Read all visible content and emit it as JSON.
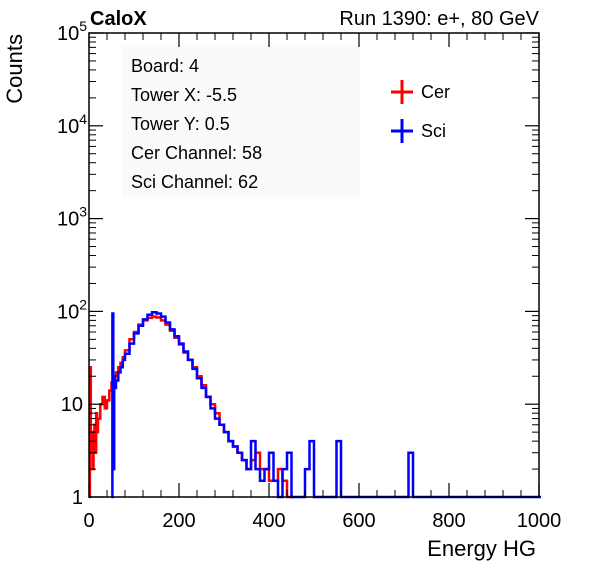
{
  "header": {
    "left_title": "CaloX",
    "right_title": "Run 1390: e+, 80 GeV"
  },
  "info_box": {
    "lines": [
      "Board: 4",
      "Tower X: -5.5",
      "Tower Y: 0.5",
      "Cer Channel: 58",
      "Sci Channel: 62"
    ]
  },
  "chart_data": {
    "type": "line",
    "xlabel": "Energy HG",
    "ylabel": "Counts",
    "xlim": [
      0,
      1000
    ],
    "ylim": [
      1,
      100000
    ],
    "y_scale": "log",
    "x_ticks": [
      0,
      200,
      400,
      600,
      800,
      1000
    ],
    "y_ticks": [
      {
        "value": 1,
        "label": "1"
      },
      {
        "value": 10,
        "label": "10"
      },
      {
        "value": 100,
        "label": "10",
        "sup": "2"
      },
      {
        "value": 1000,
        "label": "10",
        "sup": "3"
      },
      {
        "value": 10000,
        "label": "10",
        "sup": "4"
      },
      {
        "value": 100000,
        "label": "10",
        "sup": "5"
      }
    ],
    "grid": false,
    "legend_position": "top-right",
    "series": [
      {
        "name": "Cer",
        "color": "#ff0000",
        "x": [
          0,
          2,
          4,
          6,
          8,
          10,
          12,
          14,
          16,
          18,
          20,
          25,
          30,
          35,
          40,
          45,
          50,
          55,
          60,
          65,
          70,
          75,
          80,
          90,
          100,
          110,
          120,
          130,
          140,
          150,
          160,
          170,
          180,
          190,
          200,
          210,
          220,
          230,
          240,
          250,
          260,
          270,
          280,
          290,
          300,
          310,
          320,
          330,
          340,
          350,
          360,
          370,
          380,
          390,
          400,
          410,
          420,
          430,
          440,
          450
        ],
        "y": [
          1,
          25,
          3,
          5,
          2,
          4,
          6,
          3,
          8,
          5,
          7,
          10,
          12,
          9,
          11,
          14,
          17,
          20,
          22,
          25,
          28,
          32,
          38,
          50,
          60,
          72,
          80,
          85,
          88,
          86,
          80,
          72,
          62,
          52,
          44,
          36,
          30,
          25,
          20,
          16,
          12,
          10,
          8,
          6,
          5,
          4,
          3.5,
          3,
          2.5,
          2,
          2.5,
          3,
          2,
          2,
          1.5,
          1.5,
          2,
          1.5,
          1,
          1
        ]
      },
      {
        "name": "Sci",
        "color": "#0000ff",
        "x": [
          50,
          52,
          54,
          56,
          58,
          60,
          65,
          70,
          75,
          80,
          90,
          100,
          110,
          120,
          130,
          140,
          150,
          160,
          170,
          180,
          190,
          200,
          210,
          220,
          230,
          240,
          250,
          260,
          270,
          280,
          290,
          300,
          310,
          320,
          330,
          340,
          350,
          360,
          370,
          380,
          390,
          400,
          410,
          420,
          430,
          440,
          450,
          460,
          470,
          480,
          490,
          500,
          520,
          540,
          550,
          560,
          600,
          650,
          700,
          710,
          720,
          800,
          900,
          1000
        ],
        "y": [
          1,
          95,
          2,
          20,
          15,
          18,
          22,
          25,
          30,
          35,
          45,
          58,
          70,
          82,
          92,
          98,
          95,
          88,
          76,
          64,
          54,
          45,
          37,
          30,
          24,
          19,
          15,
          12,
          9,
          7,
          6,
          5,
          4,
          3.5,
          3,
          2.5,
          2,
          4,
          2,
          1.5,
          2,
          3,
          1.5,
          1,
          2,
          3,
          1,
          1,
          1,
          2,
          4,
          1,
          1,
          1,
          4,
          1,
          1,
          1,
          1,
          3,
          1,
          1,
          1,
          1
        ]
      }
    ]
  }
}
